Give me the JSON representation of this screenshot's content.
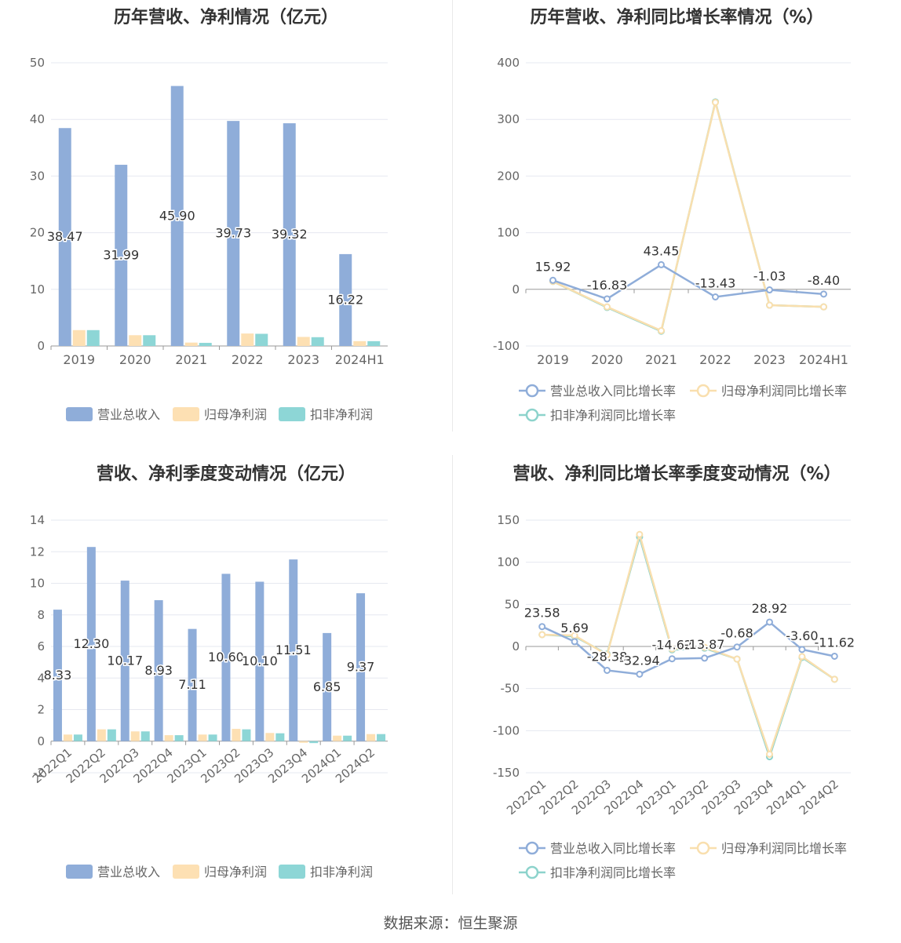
{
  "footer": {
    "source": "数据来源：恒生聚源"
  },
  "legend_bar": [
    "营业总收入",
    "归母净利润",
    "扣非净利润"
  ],
  "legend_line": [
    "营业总收入同比增长率",
    "归母净利润同比增长率",
    "扣非净利润同比增长率"
  ],
  "colors": {
    "revenue": "#8fadd9",
    "net": "#fde0b3",
    "deducted": "#8dd6d6",
    "rev_line": "#8fadd9",
    "net_line": "#f9dfae",
    "ded_line": "#8dd3cc",
    "grid": "#e6e8f0"
  },
  "chart_data": [
    {
      "type": "bar",
      "title": "历年营收、净利情况（亿元）",
      "categories": [
        "2019",
        "2020",
        "2021",
        "2022",
        "2023",
        "2024H1"
      ],
      "series": [
        {
          "name": "营业总收入",
          "values": [
            38.47,
            31.99,
            45.9,
            39.73,
            39.32,
            16.22
          ],
          "labels": [
            "38.47",
            "31.99",
            "45.90",
            "39.73",
            "39.32",
            "16.22"
          ]
        },
        {
          "name": "归母净利润",
          "values": [
            2.8,
            1.9,
            0.6,
            2.2,
            1.6,
            0.85
          ]
        },
        {
          "name": "扣非净利润",
          "values": [
            2.8,
            1.9,
            0.55,
            2.15,
            1.55,
            0.85
          ]
        }
      ],
      "ylim": [
        0,
        50
      ],
      "yticks": [
        "0",
        "10",
        "20",
        "30",
        "40",
        "50"
      ],
      "yticks_values": [
        0,
        10,
        20,
        30,
        40,
        50
      ]
    },
    {
      "type": "line",
      "title": "历年营收、净利同比增长率情况（%）",
      "categories": [
        "2019",
        "2020",
        "2021",
        "2022",
        "2023",
        "2024H1"
      ],
      "series": [
        {
          "name": "营业总收入同比增长率",
          "values": [
            15.92,
            -16.83,
            43.45,
            -13.43,
            -1.03,
            -8.4
          ],
          "labels": [
            "15.92",
            "-16.83",
            "43.45",
            "-13.43",
            "-1.03",
            "-8.40"
          ]
        },
        {
          "name": "归母净利润同比增长率",
          "values": [
            14,
            -31,
            -73,
            330,
            -28,
            -31
          ]
        },
        {
          "name": "扣非净利润同比增长率",
          "values": [
            14,
            -32,
            -74,
            331,
            -28,
            -31
          ]
        }
      ],
      "ylim": [
        -100,
        400
      ],
      "yticks": [
        "-100",
        "0",
        "100",
        "200",
        "300",
        "400"
      ],
      "yticks_values": [
        -100,
        0,
        100,
        200,
        300,
        400
      ]
    },
    {
      "type": "bar",
      "title": "营收、净利季度变动情况（亿元）",
      "categories": [
        "2022Q1",
        "2022Q2",
        "2022Q3",
        "2022Q4",
        "2023Q1",
        "2023Q2",
        "2023Q3",
        "2023Q4",
        "2024Q1",
        "2024Q2"
      ],
      "series": [
        {
          "name": "营业总收入",
          "values": [
            8.33,
            12.3,
            10.17,
            8.93,
            7.11,
            10.6,
            10.1,
            11.51,
            6.85,
            9.37
          ],
          "labels": [
            "8.33",
            "12.30",
            "10.17",
            "8.93",
            "7.11",
            "10.60",
            "10.10",
            "11.51",
            "6.85",
            "9.37"
          ]
        },
        {
          "name": "归母净利润",
          "values": [
            0.42,
            0.75,
            0.62,
            0.38,
            0.42,
            0.78,
            0.52,
            -0.1,
            0.35,
            0.45
          ]
        },
        {
          "name": "扣非净利润",
          "values": [
            0.42,
            0.75,
            0.62,
            0.38,
            0.42,
            0.75,
            0.5,
            -0.12,
            0.35,
            0.45
          ]
        }
      ],
      "ylim": [
        -2,
        14
      ],
      "yticks": [
        "-2",
        "0",
        "2",
        "4",
        "6",
        "8",
        "10",
        "12",
        "14"
      ],
      "yticks_values": [
        -2,
        0,
        2,
        4,
        6,
        8,
        10,
        12,
        14
      ]
    },
    {
      "type": "line",
      "title": "营收、净利同比增长率季度变动情况（%）",
      "categories": [
        "2022Q1",
        "2022Q2",
        "2022Q3",
        "2022Q4",
        "2023Q1",
        "2023Q2",
        "2023Q3",
        "2023Q4",
        "2024Q1",
        "2024Q2"
      ],
      "series": [
        {
          "name": "营业总收入同比增长率",
          "values": [
            23.58,
            5.69,
            -28.38,
            -32.94,
            -14.62,
            -13.87,
            -0.68,
            28.92,
            -3.6,
            -11.62
          ],
          "labels": [
            "23.58",
            "5.69",
            "-28.38",
            "-32.94",
            "-14.62",
            "-13.87",
            "-0.68",
            "28.92",
            "-3.60",
            "-11.62"
          ]
        },
        {
          "name": "归母净利润同比增长率",
          "values": [
            14,
            13,
            -10,
            133,
            -3,
            -1,
            -15,
            -128,
            -12,
            -39
          ]
        },
        {
          "name": "扣非净利润同比增长率",
          "values": [
            14,
            12,
            -9,
            130,
            -4,
            -2,
            -15,
            -131,
            -13,
            -39
          ]
        }
      ],
      "ylim": [
        -150,
        150
      ],
      "yticks": [
        "-150",
        "-100",
        "-50",
        "0",
        "50",
        "100",
        "150"
      ],
      "yticks_values": [
        -150,
        -100,
        -50,
        0,
        50,
        100,
        150
      ]
    }
  ]
}
